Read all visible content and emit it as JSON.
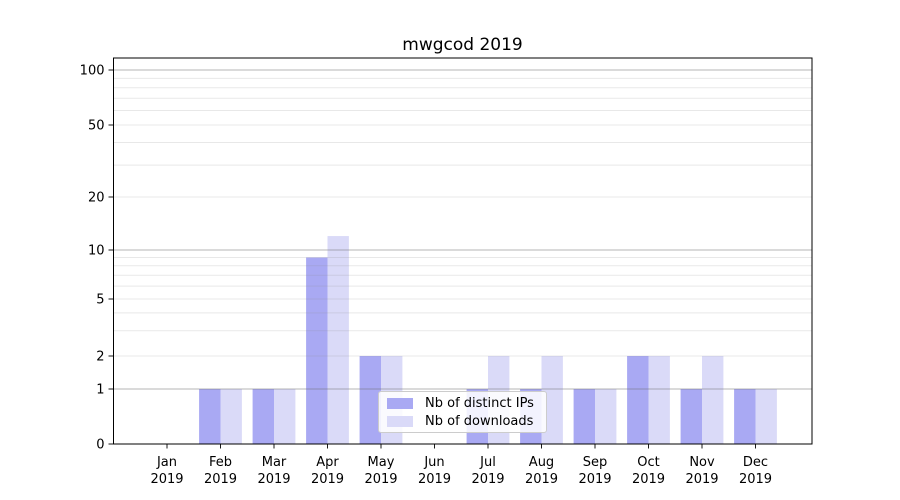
{
  "chart_data": {
    "type": "bar",
    "title": "mwgcod 2019",
    "x_categories": [
      "Jan",
      "Feb",
      "Mar",
      "Apr",
      "May",
      "Jun",
      "Jul",
      "Aug",
      "Sep",
      "Oct",
      "Nov",
      "Dec"
    ],
    "x_year_label": "2019",
    "series": [
      {
        "name": "Nb of distinct IPs",
        "color": "#a9a9f3",
        "values": [
          0,
          1,
          1,
          9,
          2,
          0,
          1,
          1,
          1,
          2,
          1,
          1
        ]
      },
      {
        "name": "Nb of downloads",
        "color": "#dadaf8",
        "values": [
          0,
          1,
          1,
          12,
          2,
          0,
          2,
          2,
          1,
          2,
          2,
          1
        ]
      }
    ],
    "y_axis": {
      "scale": "symlog",
      "tick_labels": [
        0,
        1,
        2,
        5,
        10,
        20,
        50,
        100
      ],
      "major_gridlines": [
        1,
        10,
        100
      ],
      "minor_gridlines": [
        2,
        3,
        4,
        5,
        6,
        7,
        8,
        9,
        20,
        30,
        40,
        50,
        60,
        70,
        80,
        90
      ],
      "ylim": [
        0,
        130
      ],
      "grid": true
    },
    "legend_position": "lower center"
  }
}
